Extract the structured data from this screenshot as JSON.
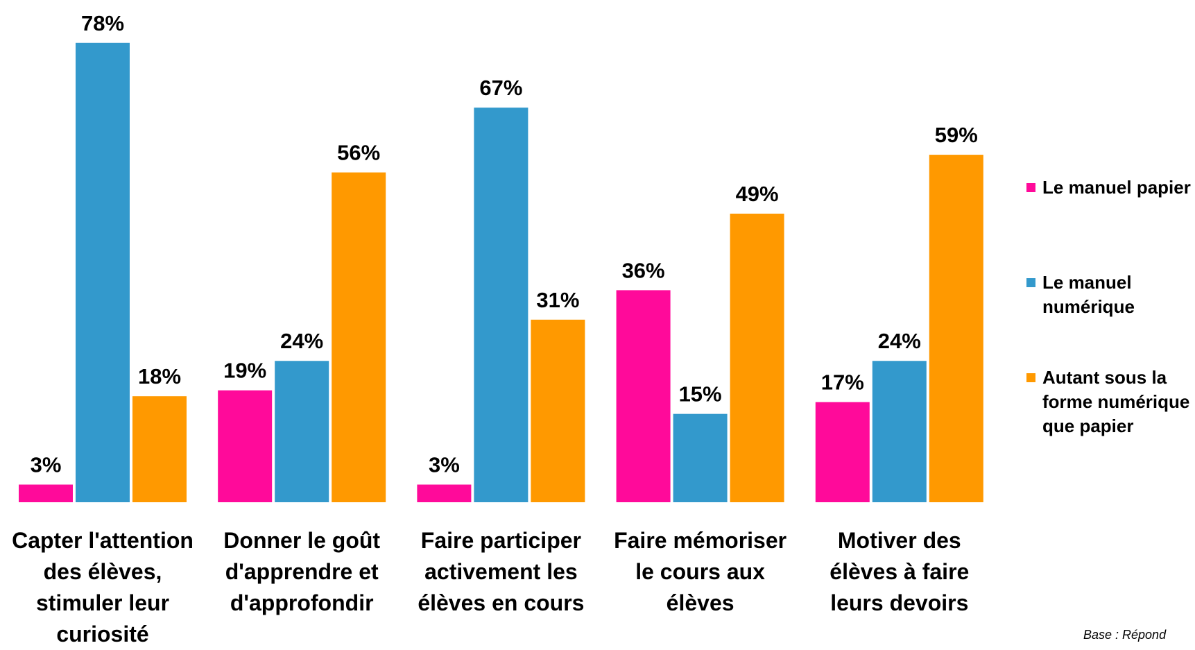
{
  "chart_data": {
    "type": "bar",
    "categories": [
      "Capter l'attention des élèves, stimuler leur curiosité",
      "Donner le goût d'apprendre et d'approfondir",
      "Faire participer activement les élèves en cours",
      "Faire mémoriser le cours aux élèves",
      "Motiver des élèves à faire leurs devoirs"
    ],
    "series": [
      {
        "name": "Le manuel papier",
        "color": "#ff0a9a",
        "values": [
          3,
          19,
          3,
          36,
          17
        ],
        "value_labels": [
          "3%",
          "19%",
          "3%",
          "36%",
          "17%"
        ]
      },
      {
        "name": "Le manuel numérique",
        "color": "#3399cc",
        "values": [
          78,
          24,
          67,
          15,
          24
        ],
        "value_labels": [
          "78%",
          "24%",
          "67%",
          "15%",
          "24%"
        ]
      },
      {
        "name": "Autant sous la forme numérique que papier",
        "color": "#ff9900",
        "values": [
          18,
          56,
          31,
          49,
          59
        ],
        "value_labels": [
          "18%",
          "56%",
          "31%",
          "49%",
          "59%"
        ]
      }
    ],
    "legend": "right",
    "footnote": "Base : Répond"
  }
}
